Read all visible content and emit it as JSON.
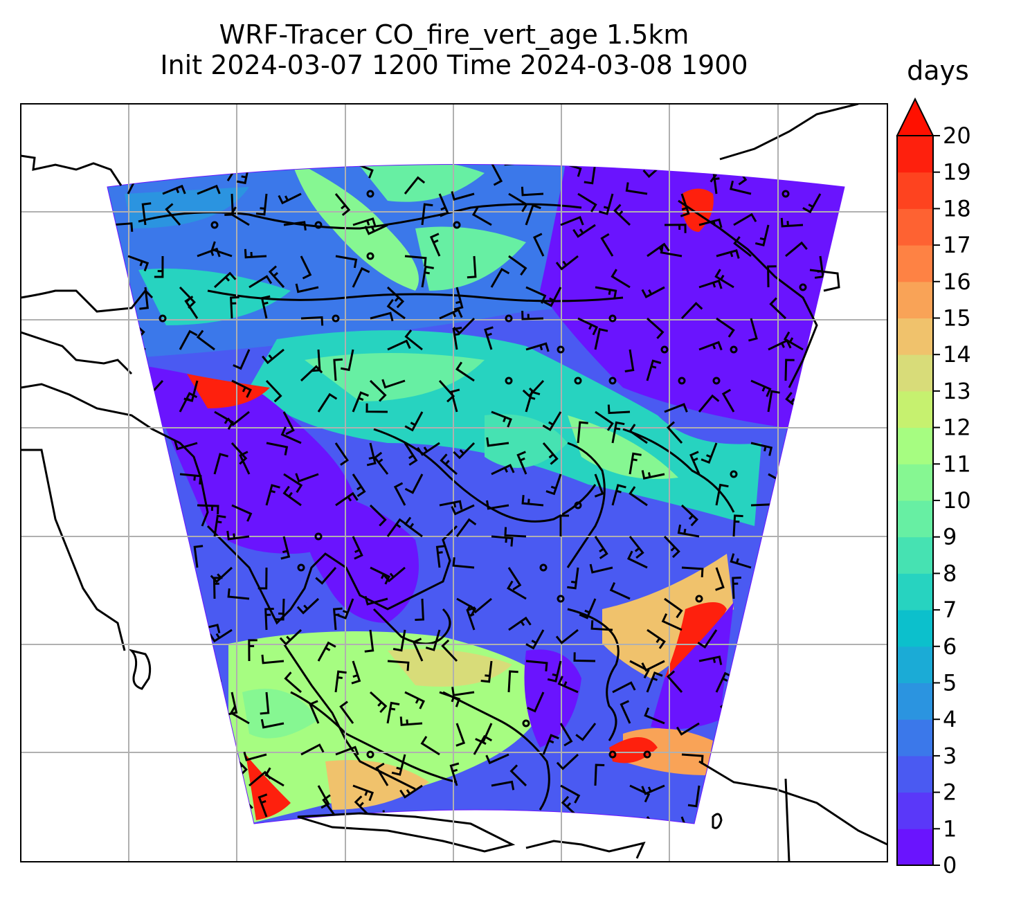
{
  "title": {
    "line1": "WRF-Tracer CO_fire_vert_age 1.5km",
    "line2": "Init 2024-03-07 1200 Time 2024-03-08 1900"
  },
  "colorbar": {
    "label": "days",
    "min": 0,
    "max": 20,
    "ticks": [
      "0",
      "1",
      "2",
      "3",
      "4",
      "5",
      "6",
      "7",
      "8",
      "9",
      "10",
      "11",
      "12",
      "13",
      "14",
      "15",
      "16",
      "17",
      "18",
      "19",
      "20"
    ],
    "extend": "max",
    "colors": [
      "#6a14fe",
      "#5a38f9",
      "#4a5af2",
      "#3b78ea",
      "#2b94e0",
      "#1babd6",
      "#0cc0cc",
      "#27d3c0",
      "#46e2b2",
      "#67efa3",
      "#86f792",
      "#a6fd81",
      "#c6f16f",
      "#d8dc79",
      "#f0c26c",
      "#f9a357",
      "#fe8244",
      "#fe6232",
      "#fe431f",
      "#fe200d"
    ],
    "extend_color": "#ff1000"
  },
  "map": {
    "field": "CO_fire_vert_age",
    "level": "1.5km",
    "units": "days",
    "gridlines": true,
    "overlay": "wind barbs",
    "coastlines": true
  }
}
